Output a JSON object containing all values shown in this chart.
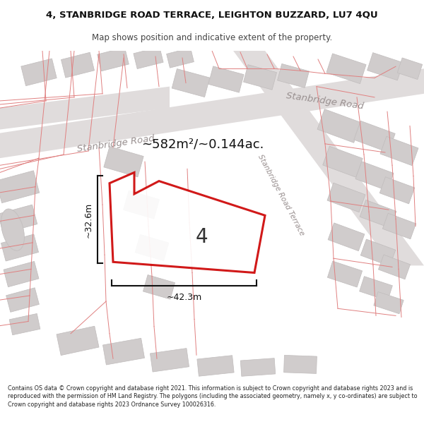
{
  "title_line1": "4, STANBRIDGE ROAD TERRACE, LEIGHTON BUZZARD, LU7 4QU",
  "title_line2": "Map shows position and indicative extent of the property.",
  "footer_text": "Contains OS data © Crown copyright and database right 2021. This information is subject to Crown copyright and database rights 2023 and is reproduced with the permission of HM Land Registry. The polygons (including the associated geometry, namely x, y co-ordinates) are subject to Crown copyright and database rights 2023 Ordnance Survey 100026316.",
  "area_label": "~582m²/~0.144ac.",
  "width_label": "~42.3m",
  "height_label": "~32.6m",
  "plot_number": "4",
  "map_bg": "#f0eeee",
  "road_fill": "#e0dcdc",
  "plot_fill": "#ffffff",
  "plot_border": "#cc0000",
  "building_fill": "#d0cccc",
  "building_edge": "#c0bcbc",
  "prop_line_color": "#e08080",
  "dim_color": "#111111",
  "label_color": "#999090",
  "title_color": "#111111",
  "footer_color": "#222222",
  "stanbridge_road_left_label": "Stanbridge Road",
  "stanbridge_road_right_label": "Stanbridge Road",
  "terrace_label": "Stanbridge Road Terrace"
}
